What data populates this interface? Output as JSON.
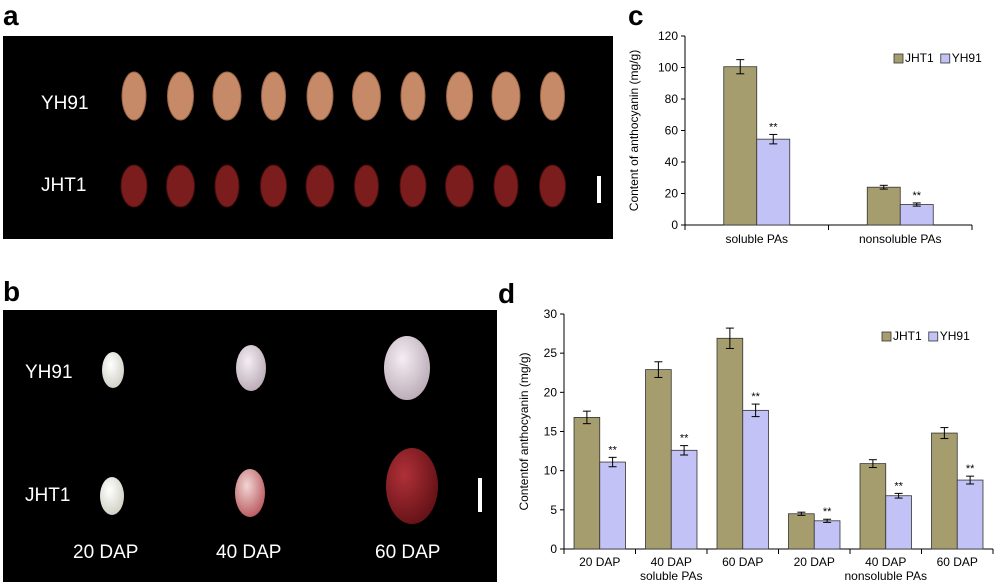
{
  "panels": {
    "a": {
      "letter": "a",
      "row_labels": [
        "YH91",
        "JHT1"
      ],
      "seeds_per_row": 10
    },
    "b": {
      "letter": "b",
      "row_labels": [
        "YH91",
        "JHT1"
      ],
      "stage_labels": [
        "20 DAP",
        "40 DAP",
        "60 DAP"
      ]
    },
    "c": {
      "letter": "c"
    },
    "d": {
      "letter": "d"
    }
  },
  "colors": {
    "jht1": "#a69d6e",
    "yh91": "#c2c2f6",
    "yh91_seed": "#c78a68",
    "jht1_seed": "#7a1d1c"
  },
  "chart_data": [
    {
      "id": "c",
      "type": "bar",
      "title": "",
      "xlabel": "",
      "ylabel": "Content of anthocyanin  (mg/g)",
      "ylim": [
        0,
        120
      ],
      "yticks": [
        0,
        20,
        40,
        60,
        80,
        100,
        120
      ],
      "categories": [
        "soluble PAs",
        "nonsoluble PAs"
      ],
      "series": [
        {
          "name": "JHT1",
          "color": "#a69d6e",
          "values": [
            100.5,
            24.0
          ],
          "errors": [
            4.5,
            1.2
          ],
          "marks": [
            "",
            ""
          ]
        },
        {
          "name": "YH91",
          "color": "#c2c2f6",
          "values": [
            54.5,
            13.0
          ],
          "errors": [
            3.0,
            1.0
          ],
          "marks": [
            "**",
            "**"
          ]
        }
      ],
      "legend_position": "top-right",
      "grid": false
    },
    {
      "id": "d",
      "type": "bar",
      "title": "",
      "xlabel": "",
      "ylabel": "Contentof anthocyanin (mg/g)",
      "ylim": [
        0,
        30
      ],
      "yticks": [
        0,
        5,
        10,
        15,
        20,
        25,
        30
      ],
      "categories": [
        "20 DAP",
        "40 DAP",
        "60 DAP",
        "20 DAP",
        "40 DAP",
        "60 DAP"
      ],
      "groups": [
        "soluble PAs",
        "nonsoluble PAs"
      ],
      "series": [
        {
          "name": "JHT1",
          "color": "#a69d6e",
          "values": [
            16.8,
            22.9,
            26.9,
            4.5,
            10.9,
            14.8
          ],
          "errors": [
            0.8,
            1.0,
            1.3,
            0.2,
            0.5,
            0.7
          ],
          "marks": [
            "",
            "",
            "",
            "",
            "",
            ""
          ]
        },
        {
          "name": "YH91",
          "color": "#c2c2f6",
          "values": [
            11.1,
            12.6,
            17.7,
            3.6,
            6.8,
            8.8
          ],
          "errors": [
            0.6,
            0.6,
            0.8,
            0.2,
            0.3,
            0.5
          ],
          "marks": [
            "**",
            "**",
            "**",
            "**",
            "**",
            "**"
          ]
        }
      ],
      "legend_position": "top-right",
      "grid": false
    }
  ]
}
